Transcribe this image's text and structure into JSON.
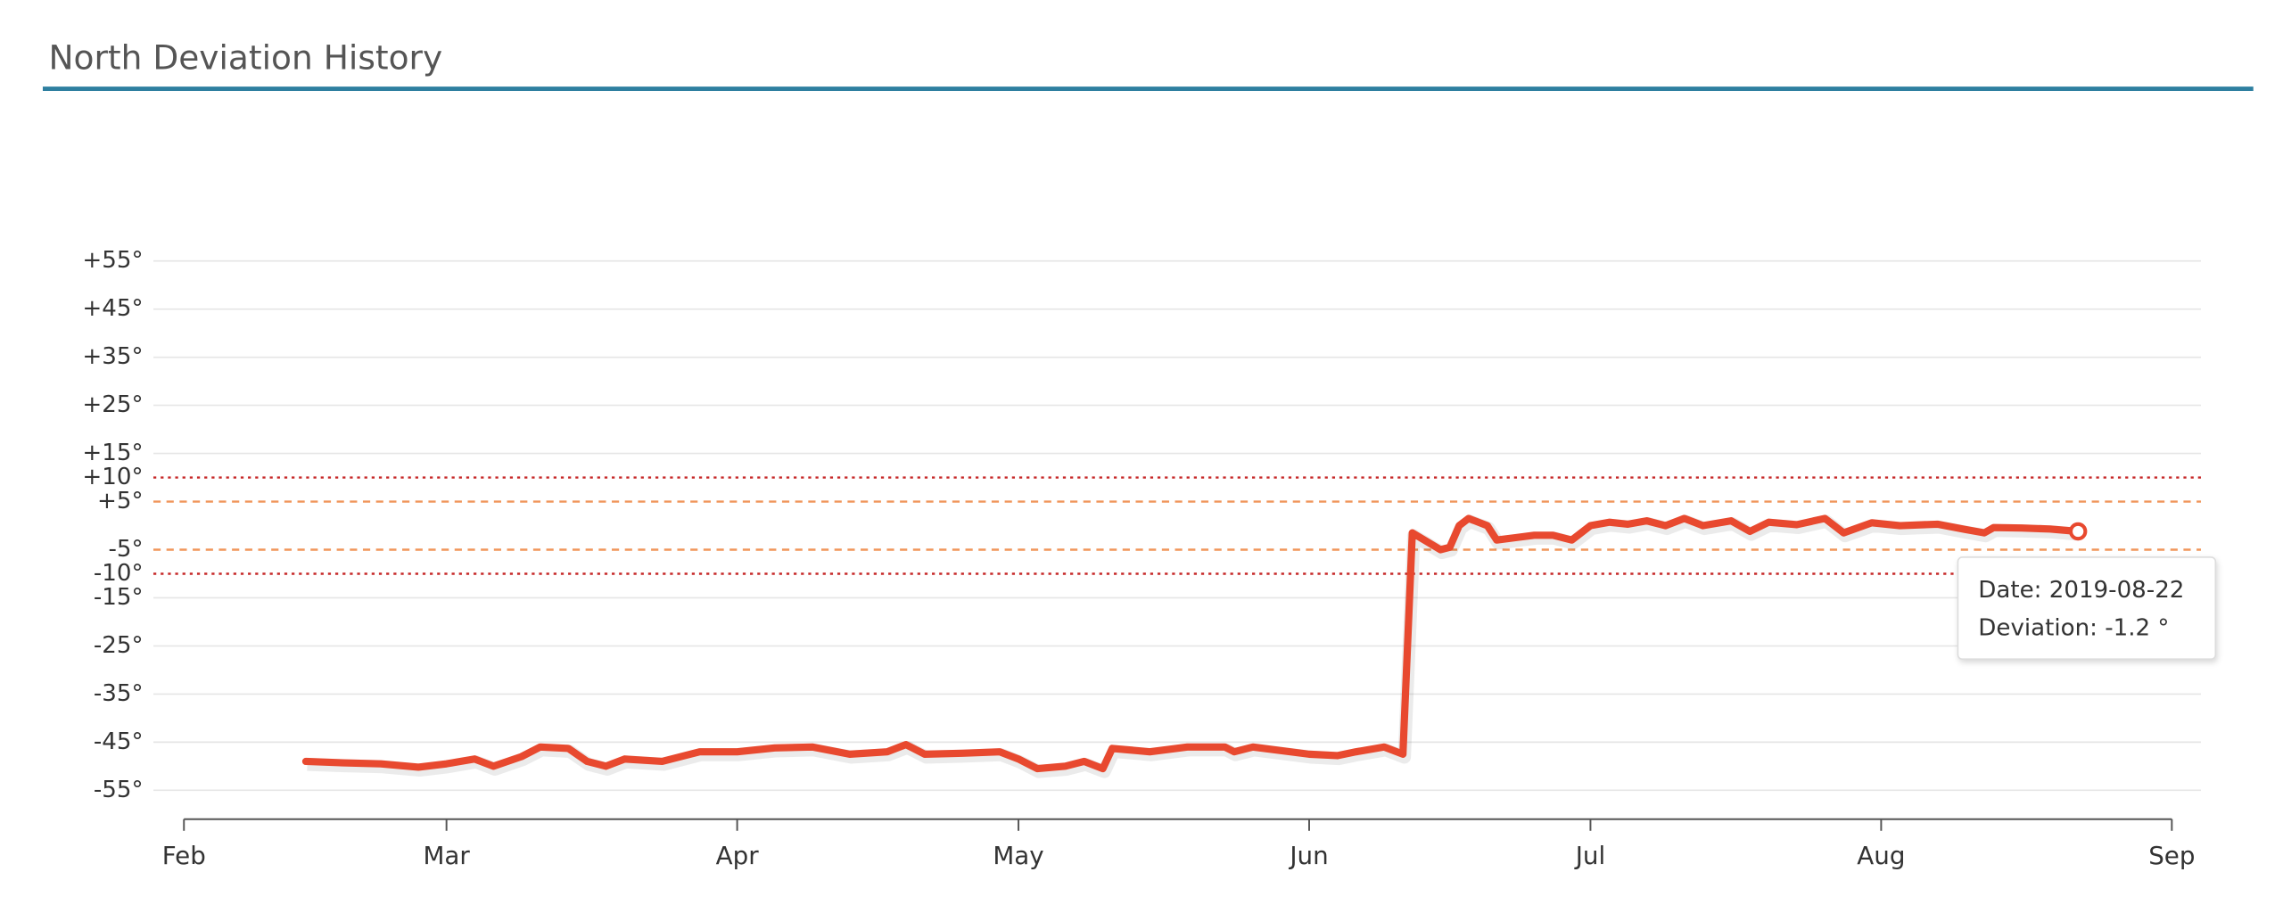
{
  "title": "North Deviation History",
  "chart_data": {
    "type": "line",
    "x": [
      "2019-02-14",
      "2019-02-18",
      "2019-02-22",
      "2019-02-26",
      "2019-03-01",
      "2019-03-04",
      "2019-03-06",
      "2019-03-09",
      "2019-03-11",
      "2019-03-14",
      "2019-03-16",
      "2019-03-18",
      "2019-03-20",
      "2019-03-24",
      "2019-03-28",
      "2019-04-01",
      "2019-04-05",
      "2019-04-09",
      "2019-04-13",
      "2019-04-17",
      "2019-04-19",
      "2019-04-21",
      "2019-04-25",
      "2019-04-29",
      "2019-05-01",
      "2019-05-03",
      "2019-05-06",
      "2019-05-08",
      "2019-05-10",
      "2019-05-11",
      "2019-05-15",
      "2019-05-19",
      "2019-05-23",
      "2019-05-24",
      "2019-05-26",
      "2019-06-01",
      "2019-06-04",
      "2019-06-06",
      "2019-06-09",
      "2019-06-11",
      "2019-06-12",
      "2019-06-15",
      "2019-06-16",
      "2019-06-17",
      "2019-06-18",
      "2019-06-20",
      "2019-06-21",
      "2019-06-23",
      "2019-06-25",
      "2019-06-27",
      "2019-06-29",
      "2019-07-01",
      "2019-07-03",
      "2019-07-05",
      "2019-07-07",
      "2019-07-09",
      "2019-07-11",
      "2019-07-13",
      "2019-07-16",
      "2019-07-18",
      "2019-07-20",
      "2019-07-23",
      "2019-07-26",
      "2019-07-28",
      "2019-07-31",
      "2019-08-03",
      "2019-08-07",
      "2019-08-10",
      "2019-08-12",
      "2019-08-13",
      "2019-08-16",
      "2019-08-19",
      "2019-08-22"
    ],
    "series": [
      {
        "name": "Deviation",
        "color": "#e8492f",
        "values": [
          -49,
          -49.3,
          -49.5,
          -50.2,
          -49.5,
          -48.5,
          -50,
          -48,
          -46,
          -46.3,
          -49,
          -50,
          -48.5,
          -49,
          -47,
          -47,
          -46.2,
          -46,
          -47.5,
          -47,
          -45.5,
          -47.5,
          -47.3,
          -47,
          -48.5,
          -50.5,
          -50,
          -49,
          -50.5,
          -46.3,
          -47,
          -46,
          -46,
          -47,
          -46,
          -47.5,
          -47.8,
          -47,
          -46,
          -47.5,
          -1.5,
          -5,
          -4.5,
          0,
          1.5,
          0,
          -3,
          -2.5,
          -2,
          -2,
          -3,
          0,
          0.7,
          0.3,
          1,
          0,
          1.5,
          0,
          1,
          -1.2,
          0.7,
          0.2,
          1.5,
          -1.5,
          0.6,
          0,
          0.3,
          -0.8,
          -1.5,
          -0.4,
          -0.5,
          -0.7,
          -1.2
        ]
      }
    ],
    "xlim": [
      "2019-02-01",
      "2019-09-01"
    ],
    "xticks": [
      {
        "value": "2019-02-01",
        "label": "Feb"
      },
      {
        "value": "2019-03-01",
        "label": "Mar"
      },
      {
        "value": "2019-04-01",
        "label": "Apr"
      },
      {
        "value": "2019-05-01",
        "label": "May"
      },
      {
        "value": "2019-06-01",
        "label": "Jun"
      },
      {
        "value": "2019-07-01",
        "label": "Jul"
      },
      {
        "value": "2019-08-01",
        "label": "Aug"
      },
      {
        "value": "2019-09-01",
        "label": "Sep"
      }
    ],
    "ylim": [
      -61,
      79
    ],
    "yticks": [
      {
        "value": 55,
        "label": "+55°"
      },
      {
        "value": 45,
        "label": "+45°"
      },
      {
        "value": 35,
        "label": "+35°"
      },
      {
        "value": 25,
        "label": "+25°"
      },
      {
        "value": 15,
        "label": "+15°"
      },
      {
        "value": -15,
        "label": "-15°"
      },
      {
        "value": -25,
        "label": "-25°"
      },
      {
        "value": -35,
        "label": "-35°"
      },
      {
        "value": -45,
        "label": "-45°"
      },
      {
        "value": -55,
        "label": "-55°"
      }
    ],
    "thresholds": [
      {
        "value": 10,
        "label": "+10°",
        "color": "#c62828",
        "dash": "dotted"
      },
      {
        "value": 5,
        "label": "+5°",
        "color": "#f0955a",
        "dash": "dashed"
      },
      {
        "value": -5,
        "label": "-5°",
        "color": "#f0955a",
        "dash": "dashed"
      },
      {
        "value": -10,
        "label": "-10°",
        "color": "#c62828",
        "dash": "dotted"
      }
    ],
    "grid": true,
    "tooltip": {
      "lines": [
        "Date: 2019-08-22",
        "Deviation: -1.2 °"
      ]
    }
  }
}
